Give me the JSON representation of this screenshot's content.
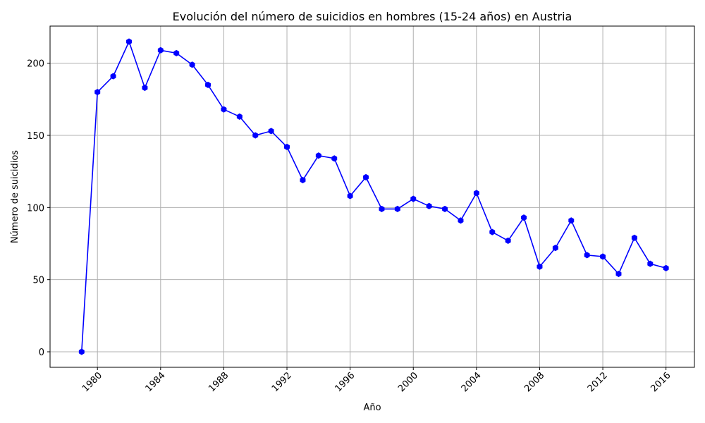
{
  "chart_data": {
    "type": "line",
    "title": "Evolución del número de suicidios en hombres (15-24 años) en Austria",
    "xlabel": "Año",
    "ylabel": "Número de suicidios",
    "x_ticks": [
      "1980",
      "1984",
      "1988",
      "1992",
      "1996",
      "2000",
      "2004",
      "2008",
      "2012",
      "2016"
    ],
    "y_ticks": [
      "0",
      "50",
      "100",
      "150",
      "200"
    ],
    "xlim": [
      1977,
      2017.8
    ],
    "ylim": [
      -10.75,
      225.75
    ],
    "grid": true,
    "series": [
      {
        "color": "#0000ff",
        "marker": "hexagon",
        "x": [
          1979,
          1980,
          1981,
          1982,
          1983,
          1984,
          1985,
          1986,
          1987,
          1988,
          1989,
          1990,
          1991,
          1992,
          1993,
          1994,
          1995,
          1996,
          1997,
          1998,
          1999,
          2000,
          2001,
          2002,
          2003,
          2004,
          2005,
          2006,
          2007,
          2008,
          2009,
          2010,
          2011,
          2012,
          2013,
          2014,
          2015,
          2016
        ],
        "y": [
          0,
          180,
          191,
          215,
          183,
          209,
          207,
          199,
          185,
          168,
          163,
          150,
          153,
          142,
          119,
          136,
          134,
          108,
          121,
          99,
          99,
          106,
          101,
          99,
          91,
          110,
          83,
          77,
          93,
          59,
          72,
          91,
          67,
          66,
          54,
          79,
          61,
          58
        ]
      }
    ]
  }
}
